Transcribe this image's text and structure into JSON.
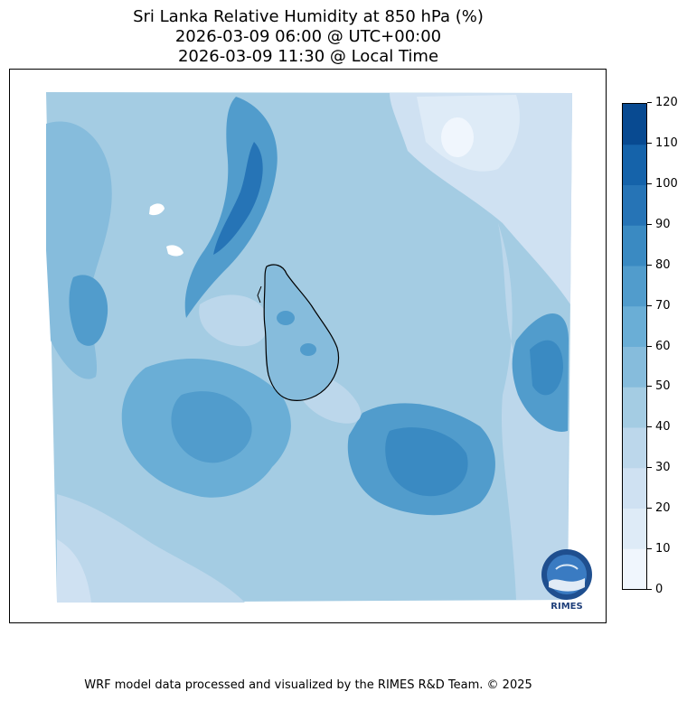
{
  "title": {
    "line1": "Sri Lanka Relative Humidity at 850 hPa (%)",
    "line2": "2026-03-09 06:00 @ UTC+00:00",
    "line3": "2026-03-09 11:30 @ Local Time"
  },
  "colorbar": {
    "ticks": [
      "120",
      "110",
      "100",
      "90",
      "80",
      "70",
      "60",
      "50",
      "40",
      "30",
      "20",
      "10",
      "0"
    ],
    "colors": [
      "#f0f6fd",
      "#deebf7",
      "#cfe1f2",
      "#bcd7eb",
      "#a4cce3",
      "#86bcdc",
      "#6aaed6",
      "#519ccc",
      "#3a8ac2",
      "#2674b6",
      "#1563aa",
      "#084a91",
      "#08306b"
    ]
  },
  "logo": {
    "text": "RIMES"
  },
  "footer": "WRF model data processed and visualized by the RIMES R&D Team. © 2025"
}
